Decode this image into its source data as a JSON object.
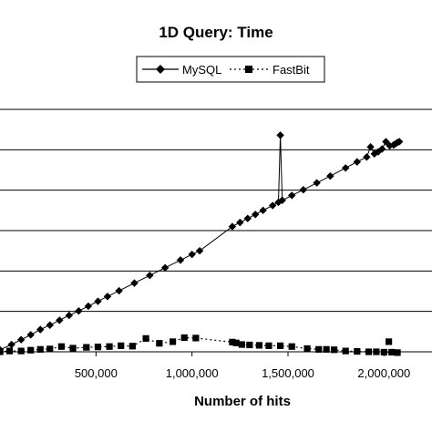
{
  "chart_data": {
    "type": "line",
    "title": "1D Query: Time",
    "xlabel": "Number of hits",
    "ylabel": "",
    "xlim": [
      0,
      2250000
    ],
    "ylim": [
      0,
      600
    ],
    "x_ticks": [
      {
        "value": 500000,
        "label": "500,000"
      },
      {
        "value": 1000000,
        "label": "1,000,000"
      },
      {
        "value": 1500000,
        "label": "1,500,000"
      },
      {
        "value": 2000000,
        "label": "2,000,000"
      }
    ],
    "y_gridlines": [
      0,
      100,
      200,
      300,
      400,
      500,
      600
    ],
    "grid": true,
    "legend": {
      "position": "top-center"
    },
    "series": [
      {
        "name": "MySQL",
        "color": "#000000",
        "line": "solid",
        "marker": "diamond",
        "points": [
          [
            0,
            5
          ],
          [
            60000,
            18
          ],
          [
            110000,
            30
          ],
          [
            160000,
            42
          ],
          [
            210000,
            55
          ],
          [
            260000,
            66
          ],
          [
            310000,
            78
          ],
          [
            360000,
            90
          ],
          [
            410000,
            101
          ],
          [
            460000,
            113
          ],
          [
            510000,
            125
          ],
          [
            560000,
            137
          ],
          [
            620000,
            151
          ],
          [
            700000,
            170
          ],
          [
            780000,
            189
          ],
          [
            860000,
            208
          ],
          [
            940000,
            227
          ],
          [
            1000000,
            241
          ],
          [
            1040000,
            250
          ],
          [
            1210000,
            310
          ],
          [
            1250000,
            320
          ],
          [
            1290000,
            330
          ],
          [
            1330000,
            340
          ],
          [
            1370000,
            350
          ],
          [
            1420000,
            362
          ],
          [
            1450000,
            370
          ],
          [
            1460000,
            536
          ],
          [
            1470000,
            375
          ],
          [
            1520000,
            387
          ],
          [
            1580000,
            401
          ],
          [
            1650000,
            418
          ],
          [
            1720000,
            435
          ],
          [
            1800000,
            455
          ],
          [
            1860000,
            470
          ],
          [
            1910000,
            482
          ],
          [
            1930000,
            507
          ],
          [
            1950000,
            490
          ],
          [
            1970000,
            495
          ],
          [
            1990000,
            502
          ],
          [
            2010000,
            520
          ],
          [
            2030000,
            510
          ],
          [
            2050000,
            512
          ],
          [
            2060000,
            515
          ],
          [
            2070000,
            518
          ],
          [
            2080000,
            520
          ]
        ]
      },
      {
        "name": "FastBit",
        "color": "#000000",
        "line": "dotted",
        "marker": "square",
        "points": [
          [
            0,
            0
          ],
          [
            50000,
            2
          ],
          [
            110000,
            2
          ],
          [
            160000,
            4
          ],
          [
            210000,
            6
          ],
          [
            260000,
            7
          ],
          [
            320000,
            13
          ],
          [
            380000,
            9
          ],
          [
            450000,
            11
          ],
          [
            510000,
            12
          ],
          [
            570000,
            13
          ],
          [
            630000,
            15
          ],
          [
            690000,
            14
          ],
          [
            760000,
            33
          ],
          [
            830000,
            21
          ],
          [
            900000,
            25
          ],
          [
            960000,
            35
          ],
          [
            1020000,
            34
          ],
          [
            1210000,
            24
          ],
          [
            1230000,
            22
          ],
          [
            1260000,
            18
          ],
          [
            1300000,
            17
          ],
          [
            1350000,
            16
          ],
          [
            1400000,
            15
          ],
          [
            1460000,
            15
          ],
          [
            1520000,
            13
          ],
          [
            1600000,
            8
          ],
          [
            1660000,
            6
          ],
          [
            1700000,
            6
          ],
          [
            1740000,
            5
          ],
          [
            1800000,
            2
          ],
          [
            1860000,
            1
          ],
          [
            1920000,
            0
          ],
          [
            1960000,
            0
          ],
          [
            2000000,
            -1
          ],
          [
            2040000,
            -1
          ],
          [
            2070000,
            -2
          ],
          [
            2025000,
            25
          ]
        ]
      }
    ]
  }
}
